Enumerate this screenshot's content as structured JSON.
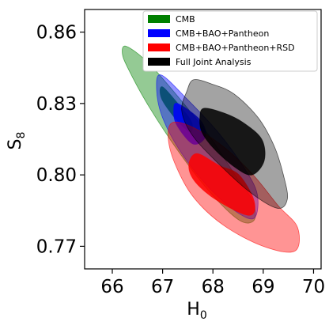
{
  "chart_data": {
    "type": "contour",
    "title": "",
    "xlabel": "H_0",
    "ylabel": "S_8",
    "xlim": [
      65.45,
      70.15
    ],
    "ylim": [
      0.7605,
      0.8695
    ],
    "xticks": [
      66,
      67,
      68,
      69,
      70
    ],
    "xtick_labels": [
      "66",
      "67",
      "68",
      "69",
      "70"
    ],
    "yticks": [
      0.77,
      0.8,
      0.83,
      0.86
    ],
    "ytick_labels": [
      "0.77",
      "0.80",
      "0.83",
      "0.86"
    ],
    "grid": false,
    "legend_position": "top-right",
    "series": [
      {
        "name": "CMB",
        "color": "#008000",
        "contours": [
          {
            "level": "95%",
            "opacity": 0.42,
            "points": [
              [
                66.28,
                0.854
              ],
              [
                66.72,
                0.847
              ],
              [
                67.34,
                0.832
              ],
              [
                67.94,
                0.816
              ],
              [
                68.47,
                0.799
              ],
              [
                68.79,
                0.789
              ],
              [
                68.82,
                0.781
              ],
              [
                68.52,
                0.781
              ],
              [
                67.93,
                0.793
              ],
              [
                67.31,
                0.81
              ],
              [
                66.72,
                0.829
              ],
              [
                66.33,
                0.844
              ],
              [
                66.2,
                0.851
              ]
            ]
          },
          {
            "level": "68%",
            "opacity": 0.85,
            "points": [
              [
                67.0,
                0.837
              ],
              [
                67.38,
                0.828
              ],
              [
                67.58,
                0.822
              ],
              [
                67.55,
                0.818
              ],
              [
                67.28,
                0.823
              ],
              [
                66.98,
                0.832
              ]
            ]
          }
        ]
      },
      {
        "name": "CMB+BAO+Pantheon",
        "color": "#0000ff",
        "contours": [
          {
            "level": "95%",
            "opacity": 0.42,
            "points": [
              [
                66.97,
                0.842
              ],
              [
                67.48,
                0.832
              ],
              [
                68.1,
                0.818
              ],
              [
                68.62,
                0.803
              ],
              [
                68.88,
                0.792
              ],
              [
                68.83,
                0.782
              ],
              [
                68.5,
                0.784
              ],
              [
                67.95,
                0.794
              ],
              [
                67.38,
                0.809
              ],
              [
                67.0,
                0.824
              ],
              [
                66.88,
                0.836
              ]
            ]
          },
          {
            "level": "68%",
            "opacity": 0.85,
            "points": [
              [
                67.3,
                0.83
              ],
              [
                67.75,
                0.823
              ],
              [
                67.85,
                0.816
              ],
              [
                67.6,
                0.813
              ],
              [
                67.28,
                0.821
              ],
              [
                67.22,
                0.827
              ]
            ]
          }
        ]
      },
      {
        "name": "CMB+BAO+Pantheon+RSD",
        "color": "#ff0000",
        "contours": [
          {
            "level": "95%",
            "opacity": 0.42,
            "points": [
              [
                67.2,
                0.822
              ],
              [
                67.6,
                0.82
              ],
              [
                68.2,
                0.812
              ],
              [
                68.8,
                0.8
              ],
              [
                69.3,
                0.787
              ],
              [
                69.68,
                0.778
              ],
              [
                69.63,
                0.768
              ],
              [
                69.0,
                0.77
              ],
              [
                68.2,
                0.779
              ],
              [
                67.6,
                0.791
              ],
              [
                67.24,
                0.805
              ],
              [
                67.11,
                0.816
              ]
            ]
          },
          {
            "level": "68%",
            "opacity": 0.85,
            "points": [
              [
                67.68,
                0.809
              ],
              [
                68.12,
                0.804
              ],
              [
                68.52,
                0.8
              ],
              [
                68.82,
                0.789
              ],
              [
                68.72,
                0.783
              ],
              [
                68.1,
                0.789
              ],
              [
                67.65,
                0.797
              ],
              [
                67.52,
                0.804
              ]
            ]
          }
        ]
      },
      {
        "name": "Full Joint Analysis",
        "color": "#000000",
        "contours": [
          {
            "level": "95%",
            "opacity": 0.36,
            "points": [
              [
                67.62,
                0.84
              ],
              [
                68.0,
                0.838
              ],
              [
                68.42,
                0.834
              ],
              [
                68.9,
                0.824
              ],
              [
                69.22,
                0.812
              ],
              [
                69.4,
                0.8
              ],
              [
                69.48,
                0.79
              ],
              [
                69.28,
                0.786
              ],
              [
                68.72,
                0.793
              ],
              [
                68.05,
                0.806
              ],
              [
                67.58,
                0.817
              ],
              [
                67.38,
                0.827
              ],
              [
                67.48,
                0.835
              ]
            ]
          },
          {
            "level": "68%",
            "opacity": 0.86,
            "points": [
              [
                67.82,
                0.828
              ],
              [
                68.22,
                0.826
              ],
              [
                68.6,
                0.822
              ],
              [
                68.97,
                0.815
              ],
              [
                69.02,
                0.806
              ],
              [
                68.78,
                0.8
              ],
              [
                68.45,
                0.803
              ],
              [
                68.02,
                0.811
              ],
              [
                67.78,
                0.818
              ],
              [
                67.74,
                0.824
              ]
            ]
          }
        ]
      }
    ]
  }
}
